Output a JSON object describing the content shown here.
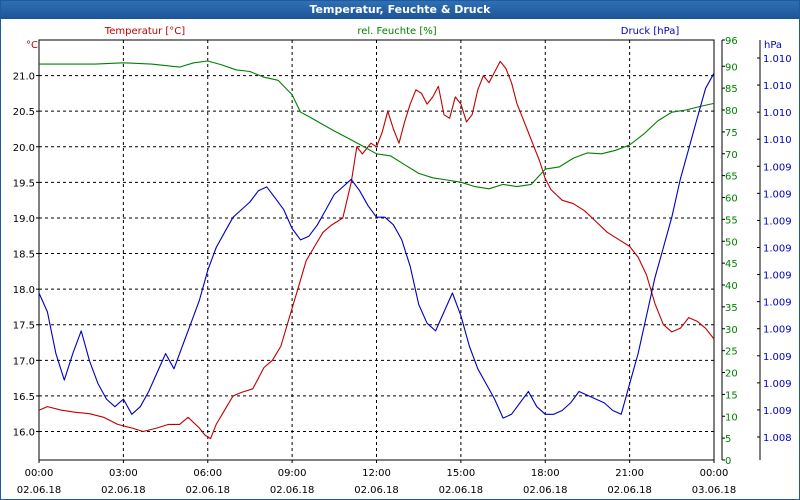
{
  "window": {
    "title": "Temperatur, Feuchte & Druck"
  },
  "colors": {
    "temperature": "#c00000",
    "humidity": "#008000",
    "pressure": "#0000c0",
    "grid": "#000000",
    "title_bg": "#2a66aa"
  },
  "chart_data": {
    "type": "line",
    "title": "Temperatur, Feuchte & Druck",
    "grid": true,
    "x_ticks": [
      {
        "time": "00:00",
        "date": "02.06.18"
      },
      {
        "time": "03:00",
        "date": "02.06.18"
      },
      {
        "time": "06:00",
        "date": "02.06.18"
      },
      {
        "time": "09:00",
        "date": "02.06.18"
      },
      {
        "time": "12:00",
        "date": "02.06.18"
      },
      {
        "time": "15:00",
        "date": "02.06.18"
      },
      {
        "time": "18:00",
        "date": "02.06.18"
      },
      {
        "time": "21:00",
        "date": "02.06.18"
      },
      {
        "time": "00:00",
        "date": "03.06.18"
      }
    ],
    "xlim_hours": [
      0,
      24
    ],
    "axes": {
      "temperature": {
        "label": "Temperatur [°C]",
        "unit": "°C",
        "ylim": [
          15.6,
          21.5
        ],
        "ticks": [
          "21.0",
          "20.5",
          "20.0",
          "19.5",
          "19.0",
          "18.5",
          "18.0",
          "17.5",
          "17.0",
          "16.5",
          "16.0"
        ]
      },
      "humidity": {
        "label": "rel. Feuchte [%]",
        "unit": "%",
        "ylim": [
          0,
          96
        ],
        "ticks": [
          "96",
          "90",
          "85",
          "80",
          "75",
          "70",
          "65",
          "60",
          "55",
          "50",
          "45",
          "40",
          "35",
          "30",
          "25",
          "20",
          "15",
          "10",
          "5",
          "0"
        ]
      },
      "pressure": {
        "label": "Druck [hPa]",
        "unit": "hPa",
        "ylim": [
          0,
          100
        ],
        "ticks": [
          "1.010",
          "1.010",
          "1.010",
          "1.010",
          "1.009",
          "1.009",
          "1.009",
          "1.009",
          "1.009",
          "1.009",
          "1.009",
          "1.009",
          "1.009",
          "1.009",
          "1.008"
        ]
      }
    },
    "series": [
      {
        "name": "Temperatur [°C]",
        "axis": "temperature",
        "color": "#c00000",
        "x": [
          0,
          0.3,
          0.8,
          1.3,
          1.8,
          2.3,
          2.8,
          3.3,
          3.7,
          4.2,
          4.6,
          5,
          5.3,
          5.7,
          5.9,
          6.1,
          6.3,
          6.6,
          6.9,
          7.2,
          7.6,
          8,
          8.3,
          8.6,
          8.9,
          9.2,
          9.5,
          9.8,
          10.1,
          10.4,
          10.8,
          11.1,
          11.3,
          11.5,
          11.8,
          12,
          12.2,
          12.4,
          12.6,
          12.8,
          13,
          13.2,
          13.4,
          13.6,
          13.8,
          14,
          14.2,
          14.4,
          14.6,
          14.8,
          15,
          15.2,
          15.4,
          15.6,
          15.8,
          16,
          16.2,
          16.4,
          16.6,
          16.8,
          17,
          17.2,
          17.4,
          17.6,
          17.8,
          18,
          18.2,
          18.6,
          19,
          19.4,
          19.8,
          20.2,
          20.6,
          21,
          21.3,
          21.6,
          21.9,
          22.2,
          22.5,
          22.8,
          23.1,
          23.4,
          23.7,
          24
        ],
        "values": [
          16.3,
          16.35,
          16.3,
          16.27,
          16.25,
          16.2,
          16.1,
          16.05,
          16.0,
          16.05,
          16.1,
          16.1,
          16.2,
          16.05,
          15.95,
          15.9,
          16.1,
          16.3,
          16.5,
          16.55,
          16.6,
          16.9,
          17.0,
          17.2,
          17.6,
          18.0,
          18.4,
          18.6,
          18.8,
          18.9,
          19.0,
          19.5,
          20.0,
          19.9,
          20.05,
          20.0,
          20.2,
          20.5,
          20.25,
          20.05,
          20.35,
          20.6,
          20.8,
          20.75,
          20.6,
          20.7,
          20.85,
          20.45,
          20.4,
          20.7,
          20.6,
          20.35,
          20.45,
          20.8,
          21.0,
          20.9,
          21.05,
          21.2,
          21.1,
          20.9,
          20.6,
          20.4,
          20.2,
          20.0,
          19.8,
          19.55,
          19.4,
          19.25,
          19.2,
          19.1,
          18.95,
          18.8,
          18.7,
          18.6,
          18.45,
          18.2,
          17.8,
          17.5,
          17.4,
          17.45,
          17.6,
          17.55,
          17.45,
          17.3
        ]
      },
      {
        "name": "rel. Feuchte [%]",
        "axis": "humidity",
        "color": "#008000",
        "x": [
          0,
          1,
          2,
          3,
          4,
          5,
          5.5,
          6,
          6.5,
          7,
          7.5,
          8,
          8.5,
          9,
          9.3,
          9.6,
          10,
          10.5,
          11,
          11.5,
          12,
          12.5,
          13,
          13.5,
          14,
          14.5,
          15,
          15.5,
          16,
          16.5,
          17,
          17.5,
          18,
          18.5,
          19,
          19.5,
          20,
          20.5,
          21,
          21.5,
          22,
          22.5,
          23,
          23.5,
          24
        ],
        "values": [
          90.5,
          90.5,
          90.5,
          90.8,
          90.5,
          89.8,
          90.8,
          91.2,
          90.3,
          89.2,
          88.8,
          87.5,
          86.8,
          83.5,
          79.5,
          78.5,
          77,
          75.2,
          73.5,
          71.8,
          70,
          69.5,
          67.5,
          65.5,
          64.5,
          64,
          63.5,
          62.5,
          62,
          63,
          62.5,
          63,
          66.5,
          67,
          69,
          70.2,
          70,
          70.8,
          72,
          74.5,
          77.5,
          79.5,
          80,
          80.8,
          81.5
        ]
      },
      {
        "name": "Druck [hPa]",
        "axis": "pressure",
        "color": "#0000c0",
        "x": [
          0,
          0.3,
          0.6,
          0.9,
          1.2,
          1.5,
          1.8,
          2.1,
          2.4,
          2.7,
          3,
          3.3,
          3.6,
          3.9,
          4.2,
          4.5,
          4.8,
          5.1,
          5.4,
          5.7,
          6,
          6.3,
          6.6,
          6.9,
          7.2,
          7.5,
          7.8,
          8.1,
          8.4,
          8.7,
          9,
          9.3,
          9.6,
          9.9,
          10.2,
          10.5,
          10.8,
          11.1,
          11.4,
          11.7,
          12,
          12.3,
          12.6,
          12.9,
          13.2,
          13.5,
          13.8,
          14.1,
          14.4,
          14.7,
          15,
          15.3,
          15.6,
          15.9,
          16.2,
          16.5,
          16.8,
          17.1,
          17.4,
          17.7,
          18,
          18.3,
          18.6,
          18.9,
          19.2,
          19.5,
          19.8,
          20.1,
          20.4,
          20.7,
          21,
          21.3,
          21.6,
          21.9,
          22.2,
          22.5,
          22.8,
          23.1,
          23.4,
          23.7,
          24
        ],
        "values": [
          38,
          33,
          22,
          15,
          22,
          28,
          20,
          14,
          10,
          8,
          10,
          6,
          8,
          12,
          17,
          22,
          18,
          24,
          30,
          36,
          44,
          50,
          54,
          58,
          60,
          62,
          65,
          66,
          63,
          60,
          55,
          52,
          53,
          56,
          60,
          64,
          66,
          68,
          65,
          61,
          58,
          58,
          56,
          52,
          45,
          35,
          30,
          28,
          33,
          38,
          32,
          24,
          18,
          14,
          10,
          5,
          6,
          9,
          12,
          8,
          6,
          6,
          7,
          9,
          12,
          11,
          10,
          9,
          7,
          6,
          14,
          22,
          32,
          42,
          50,
          58,
          68,
          76,
          84,
          92,
          96
        ],
        "values_note": "plotted on axis range 0–100 (relative position between printed pressure ticks)"
      }
    ]
  }
}
